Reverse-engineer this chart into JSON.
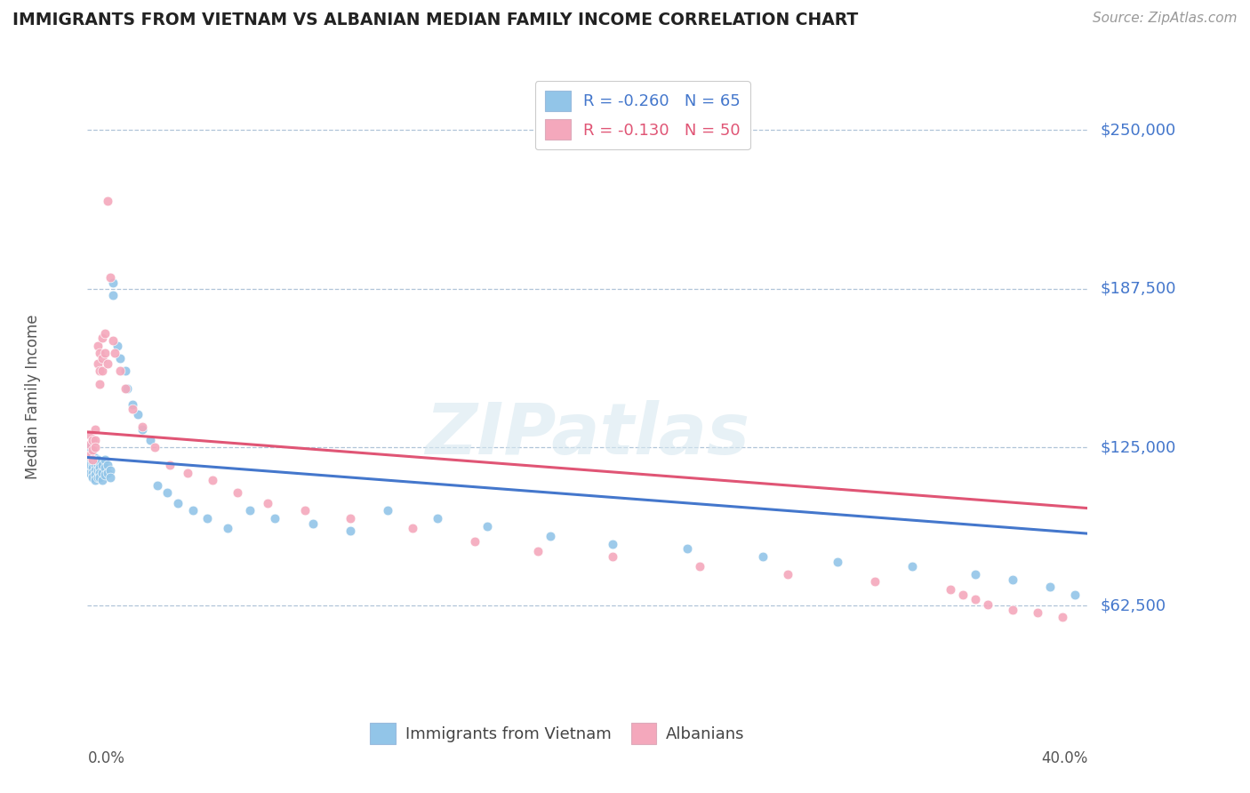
{
  "title": "IMMIGRANTS FROM VIETNAM VS ALBANIAN MEDIAN FAMILY INCOME CORRELATION CHART",
  "source": "Source: ZipAtlas.com",
  "ylabel": "Median Family Income",
  "ytick_vals": [
    62500,
    125000,
    187500,
    250000
  ],
  "ytick_labels": [
    "$62,500",
    "$125,000",
    "$187,500",
    "$250,000"
  ],
  "xmin": 0.0,
  "xmax": 0.4,
  "ymin": 20000,
  "ymax": 270000,
  "blue_color": "#92c5e8",
  "pink_color": "#f4a8bc",
  "blue_line_color": "#4477cc",
  "pink_line_color": "#e05575",
  "legend_blue_R": "-0.260",
  "legend_blue_N": "65",
  "legend_pink_R": "-0.130",
  "legend_pink_N": "50",
  "legend_label_blue": "Immigrants from Vietnam",
  "legend_label_pink": "Albanians",
  "blue_x": [
    0.001,
    0.001,
    0.001,
    0.001,
    0.002,
    0.002,
    0.002,
    0.002,
    0.002,
    0.003,
    0.003,
    0.003,
    0.003,
    0.003,
    0.004,
    0.004,
    0.004,
    0.004,
    0.005,
    0.005,
    0.005,
    0.005,
    0.006,
    0.006,
    0.006,
    0.007,
    0.007,
    0.007,
    0.008,
    0.008,
    0.009,
    0.009,
    0.01,
    0.01,
    0.012,
    0.013,
    0.015,
    0.016,
    0.018,
    0.02,
    0.022,
    0.025,
    0.028,
    0.032,
    0.036,
    0.042,
    0.048,
    0.056,
    0.065,
    0.075,
    0.09,
    0.105,
    0.12,
    0.14,
    0.16,
    0.185,
    0.21,
    0.24,
    0.27,
    0.3,
    0.33,
    0.355,
    0.37,
    0.385,
    0.395
  ],
  "blue_y": [
    125000,
    120000,
    118000,
    115000,
    122000,
    119000,
    117000,
    115000,
    113000,
    121000,
    118000,
    116000,
    114000,
    112000,
    120000,
    118000,
    116000,
    113000,
    119000,
    117000,
    115000,
    113000,
    118000,
    115000,
    112000,
    120000,
    117000,
    114000,
    118000,
    115000,
    116000,
    113000,
    185000,
    190000,
    165000,
    160000,
    155000,
    148000,
    142000,
    138000,
    132000,
    128000,
    110000,
    107000,
    103000,
    100000,
    97000,
    93000,
    100000,
    97000,
    95000,
    92000,
    100000,
    97000,
    94000,
    90000,
    87000,
    85000,
    82000,
    80000,
    78000,
    75000,
    73000,
    70000,
    67000
  ],
  "pink_x": [
    0.001,
    0.001,
    0.001,
    0.002,
    0.002,
    0.002,
    0.003,
    0.003,
    0.003,
    0.004,
    0.004,
    0.005,
    0.005,
    0.005,
    0.006,
    0.006,
    0.006,
    0.007,
    0.007,
    0.008,
    0.008,
    0.009,
    0.01,
    0.011,
    0.013,
    0.015,
    0.018,
    0.022,
    0.027,
    0.033,
    0.04,
    0.05,
    0.06,
    0.072,
    0.087,
    0.105,
    0.13,
    0.155,
    0.18,
    0.21,
    0.245,
    0.28,
    0.315,
    0.345,
    0.35,
    0.355,
    0.36,
    0.37,
    0.38,
    0.39
  ],
  "pink_y": [
    130000,
    126000,
    122000,
    128000,
    124000,
    120000,
    132000,
    128000,
    125000,
    165000,
    158000,
    162000,
    155000,
    150000,
    168000,
    160000,
    155000,
    170000,
    162000,
    158000,
    222000,
    192000,
    167000,
    162000,
    155000,
    148000,
    140000,
    133000,
    125000,
    118000,
    115000,
    112000,
    107000,
    103000,
    100000,
    97000,
    93000,
    88000,
    84000,
    82000,
    78000,
    75000,
    72000,
    69000,
    67000,
    65000,
    63000,
    61000,
    60000,
    58000
  ]
}
